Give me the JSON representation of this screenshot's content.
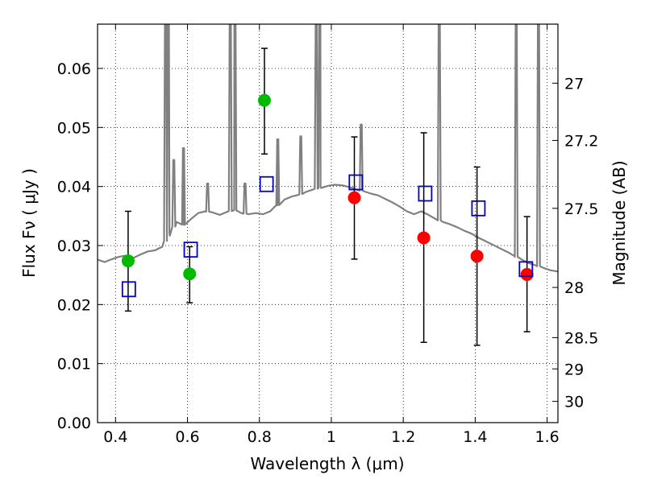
{
  "chart_data": {
    "type": "scatter",
    "xlabel": "Wavelength  λ (μm)",
    "ylabel": "Flux  Fν  ( μJy )",
    "ylabel_right": "Magnitude (AB)",
    "xlim": [
      0.35,
      1.63
    ],
    "ylim": [
      0.0,
      0.0675
    ],
    "grid": true,
    "x_ticks": [
      {
        "value": 0.4,
        "label": "0.4"
      },
      {
        "value": 0.6,
        "label": "0.6"
      },
      {
        "value": 0.8,
        "label": "0.8"
      },
      {
        "value": 1.0,
        "label": "1"
      },
      {
        "value": 1.2,
        "label": "1.2"
      },
      {
        "value": 1.4,
        "label": "1.4"
      },
      {
        "value": 1.6,
        "label": "1.6"
      }
    ],
    "y_ticks": [
      {
        "value": 0.0,
        "label": "0.00"
      },
      {
        "value": 0.01,
        "label": "0.01"
      },
      {
        "value": 0.02,
        "label": "0.02"
      },
      {
        "value": 0.03,
        "label": "0.03"
      },
      {
        "value": 0.04,
        "label": "0.04"
      },
      {
        "value": 0.05,
        "label": "0.05"
      },
      {
        "value": 0.06,
        "label": "0.06"
      }
    ],
    "right_ticks": [
      {
        "flux": 0.0575,
        "label": "27"
      },
      {
        "flux": 0.0478,
        "label": "27.2"
      },
      {
        "flux": 0.0363,
        "label": "27.5"
      },
      {
        "flux": 0.0229,
        "label": "28"
      },
      {
        "flux": 0.0144,
        "label": "28.5"
      },
      {
        "flux": 0.0091,
        "label": "29"
      },
      {
        "flux": 0.0036,
        "label": "30"
      }
    ],
    "series": [
      {
        "marker": "filled-circle",
        "color": "#00bb00",
        "points": [
          {
            "x": 0.435,
            "y": 0.0274,
            "ylo": 0.0189,
            "yhi": 0.0358
          },
          {
            "x": 0.606,
            "y": 0.0252,
            "ylo": 0.0203,
            "yhi": 0.0298
          },
          {
            "x": 0.814,
            "y": 0.0546,
            "ylo": 0.0455,
            "yhi": 0.0634
          }
        ]
      },
      {
        "marker": "filled-circle",
        "color": "#ff0000",
        "points": [
          {
            "x": 1.064,
            "y": 0.0381,
            "ylo": 0.0277,
            "yhi": 0.0484
          },
          {
            "x": 1.257,
            "y": 0.0313,
            "ylo": 0.0136,
            "yhi": 0.0491
          },
          {
            "x": 1.405,
            "y": 0.0282,
            "ylo": 0.0131,
            "yhi": 0.0433
          },
          {
            "x": 1.544,
            "y": 0.0251,
            "ylo": 0.0154,
            "yhi": 0.0349
          }
        ]
      },
      {
        "marker": "open-square",
        "color": "#0000cc",
        "points": [
          {
            "x": 0.437,
            "y": 0.0226
          },
          {
            "x": 0.609,
            "y": 0.0293
          },
          {
            "x": 0.82,
            "y": 0.0404
          },
          {
            "x": 1.068,
            "y": 0.0407
          },
          {
            "x": 1.261,
            "y": 0.0388
          },
          {
            "x": 1.409,
            "y": 0.0363
          },
          {
            "x": 1.541,
            "y": 0.026
          }
        ]
      }
    ],
    "continuum": {
      "color": "#808080",
      "points": [
        [
          0.35,
          0.0276
        ],
        [
          0.37,
          0.0272
        ],
        [
          0.39,
          0.0277
        ],
        [
          0.41,
          0.0281
        ],
        [
          0.43,
          0.0283
        ],
        [
          0.45,
          0.0279
        ],
        [
          0.47,
          0.0285
        ],
        [
          0.49,
          0.029
        ],
        [
          0.51,
          0.0292
        ],
        [
          0.53,
          0.0298
        ],
        [
          0.55,
          0.032
        ],
        [
          0.57,
          0.034
        ],
        [
          0.59,
          0.0335
        ],
        [
          0.61,
          0.0345
        ],
        [
          0.63,
          0.0355
        ],
        [
          0.65,
          0.0358
        ],
        [
          0.67,
          0.0356
        ],
        [
          0.69,
          0.0352
        ],
        [
          0.71,
          0.0357
        ],
        [
          0.73,
          0.036
        ],
        [
          0.75,
          0.0355
        ],
        [
          0.77,
          0.0353
        ],
        [
          0.79,
          0.0355
        ],
        [
          0.81,
          0.0353
        ],
        [
          0.83,
          0.0358
        ],
        [
          0.85,
          0.0368
        ],
        [
          0.87,
          0.0378
        ],
        [
          0.89,
          0.0383
        ],
        [
          0.91,
          0.0386
        ],
        [
          0.93,
          0.0391
        ],
        [
          0.95,
          0.0395
        ],
        [
          0.97,
          0.0398
        ],
        [
          0.99,
          0.0401
        ],
        [
          1.01,
          0.0403
        ],
        [
          1.03,
          0.0402
        ],
        [
          1.05,
          0.0399
        ],
        [
          1.07,
          0.0395
        ],
        [
          1.09,
          0.0392
        ],
        [
          1.11,
          0.0388
        ],
        [
          1.13,
          0.0385
        ],
        [
          1.15,
          0.0379
        ],
        [
          1.17,
          0.0373
        ],
        [
          1.19,
          0.0366
        ],
        [
          1.21,
          0.0358
        ],
        [
          1.23,
          0.0353
        ],
        [
          1.25,
          0.0358
        ],
        [
          1.27,
          0.0352
        ],
        [
          1.29,
          0.0345
        ],
        [
          1.31,
          0.034
        ],
        [
          1.33,
          0.0336
        ],
        [
          1.35,
          0.0331
        ],
        [
          1.37,
          0.0325
        ],
        [
          1.39,
          0.032
        ],
        [
          1.41,
          0.0313
        ],
        [
          1.43,
          0.0307
        ],
        [
          1.45,
          0.0301
        ],
        [
          1.47,
          0.0295
        ],
        [
          1.49,
          0.0289
        ],
        [
          1.51,
          0.0282
        ],
        [
          1.53,
          0.0276
        ],
        [
          1.55,
          0.027
        ],
        [
          1.57,
          0.0266
        ],
        [
          1.59,
          0.0262
        ],
        [
          1.61,
          0.0258
        ],
        [
          1.63,
          0.0256
        ]
      ],
      "emission_lines": [
        {
          "x": 0.539,
          "peak": 0.07
        },
        {
          "x": 0.547,
          "peak": 0.07
        },
        {
          "x": 0.562,
          "peak": 0.0445
        },
        {
          "x": 0.589,
          "peak": 0.0465
        },
        {
          "x": 0.656,
          "peak": 0.0405
        },
        {
          "x": 0.719,
          "peak": 0.07
        },
        {
          "x": 0.732,
          "peak": 0.07
        },
        {
          "x": 0.76,
          "peak": 0.0405
        },
        {
          "x": 0.851,
          "peak": 0.048
        },
        {
          "x": 0.915,
          "peak": 0.0485
        },
        {
          "x": 0.958,
          "peak": 0.07
        },
        {
          "x": 0.968,
          "peak": 0.07
        },
        {
          "x": 1.083,
          "peak": 0.0505
        },
        {
          "x": 1.3,
          "peak": 0.07
        },
        {
          "x": 1.514,
          "peak": 0.07
        },
        {
          "x": 1.576,
          "peak": 0.07
        }
      ]
    }
  }
}
